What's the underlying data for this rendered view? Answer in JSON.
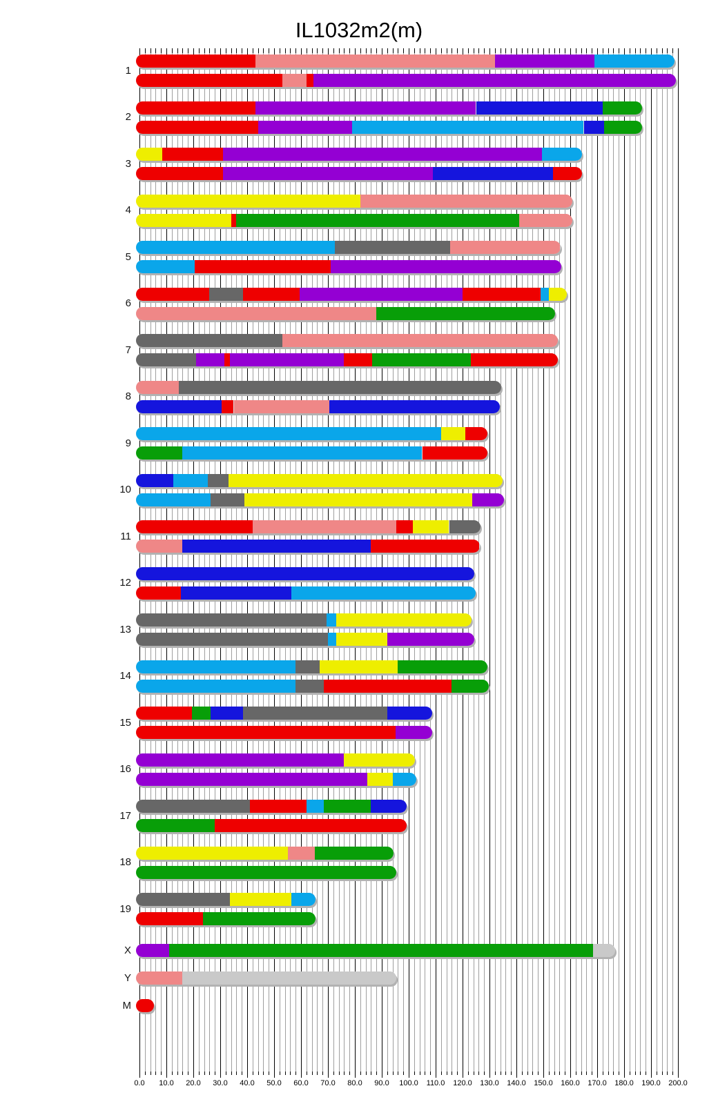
{
  "title": "IL1032m2(m)",
  "palette": {
    "red": "#ee0000",
    "pink": "#ef8787",
    "purple": "#9400d3",
    "blue": "#1515dd",
    "lightblue": "#0aa6ea",
    "green": "#089e08",
    "yellow": "#eeee00",
    "gray": "#676767",
    "lightgray": "#c9c9c9"
  },
  "axis": {
    "min": 0,
    "max": 200,
    "major_step": 10,
    "minor_step": 2,
    "tick_labels": [
      "0.0",
      "10.0",
      "20.0",
      "30.0",
      "40.0",
      "50.0",
      "60.0",
      "70.0",
      "80.0",
      "90.0",
      "100.0",
      "110.0",
      "120.0",
      "130.0",
      "140.0",
      "150.0",
      "160.0",
      "170.0",
      "180.0",
      "190.0",
      "200.0"
    ]
  },
  "chart_data": {
    "type": "bar",
    "subtype": "chromosome-ideogram-stacked-segments",
    "title": "IL1032m2(m)",
    "xlim": [
      0,
      200
    ],
    "grid": "on",
    "chromosomes": [
      {
        "name": "1",
        "bars": [
          [
            [
              0,
              43,
              "red"
            ],
            [
              43,
              132,
              "pink"
            ],
            [
              132,
              169,
              "purple"
            ],
            [
              169,
              197.5,
              "lightblue"
            ]
          ],
          [
            [
              0,
              53,
              "red"
            ],
            [
              53,
              62,
              "pink"
            ],
            [
              62,
              64.5,
              "red"
            ],
            [
              64.5,
              198,
              "purple"
            ]
          ]
        ]
      },
      {
        "name": "2",
        "bars": [
          [
            [
              0,
              43,
              "red"
            ],
            [
              43,
              125,
              "purple"
            ],
            [
              125,
              172,
              "blue"
            ],
            [
              172,
              185.5,
              "green"
            ]
          ],
          [
            [
              0,
              44,
              "red"
            ],
            [
              44,
              79,
              "purple"
            ],
            [
              79,
              165,
              "lightblue"
            ],
            [
              165,
              172.5,
              "blue"
            ],
            [
              172.5,
              185.5,
              "green"
            ]
          ]
        ]
      },
      {
        "name": "3",
        "bars": [
          [
            [
              0,
              8.5,
              "yellow"
            ],
            [
              8.5,
              31,
              "red"
            ],
            [
              31,
              149.5,
              "purple"
            ],
            [
              149.5,
              163,
              "lightblue"
            ]
          ],
          [
            [
              0,
              31,
              "red"
            ],
            [
              31,
              109,
              "purple"
            ],
            [
              109,
              153.5,
              "blue"
            ],
            [
              153.5,
              163,
              "red"
            ]
          ]
        ]
      },
      {
        "name": "4",
        "bars": [
          [
            [
              0,
              82,
              "yellow"
            ],
            [
              82,
              159.5,
              "pink"
            ]
          ],
          [
            [
              0,
              34,
              "yellow"
            ],
            [
              34,
              36,
              "red"
            ],
            [
              36,
              141,
              "green"
            ],
            [
              141,
              159.5,
              "pink"
            ]
          ]
        ]
      },
      {
        "name": "5",
        "bars": [
          [
            [
              0,
              72.5,
              "lightblue"
            ],
            [
              72.5,
              115.5,
              "gray"
            ],
            [
              115.5,
              155,
              "pink"
            ]
          ],
          [
            [
              0,
              20.5,
              "lightblue"
            ],
            [
              20.5,
              71,
              "red"
            ],
            [
              71,
              155.5,
              "purple"
            ]
          ]
        ]
      },
      {
        "name": "6",
        "bars": [
          [
            [
              0,
              26,
              "red"
            ],
            [
              26,
              38.5,
              "gray"
            ],
            [
              38.5,
              59.5,
              "red"
            ],
            [
              59.5,
              120,
              "purple"
            ],
            [
              120,
              149,
              "red"
            ],
            [
              149,
              152,
              "lightblue"
            ],
            [
              152,
              157.5,
              "yellow"
            ]
          ],
          [
            [
              0,
              88,
              "pink"
            ],
            [
              88,
              153,
              "green"
            ]
          ]
        ]
      },
      {
        "name": "7",
        "bars": [
          [
            [
              0,
              53,
              "gray"
            ],
            [
              53,
              154,
              "pink"
            ]
          ],
          [
            [
              0,
              21,
              "gray"
            ],
            [
              21,
              31.5,
              "purple"
            ],
            [
              31.5,
              33.5,
              "red"
            ],
            [
              33.5,
              76,
              "purple"
            ],
            [
              76,
              86.5,
              "red"
            ],
            [
              86.5,
              123,
              "green"
            ],
            [
              123,
              154,
              "red"
            ]
          ]
        ]
      },
      {
        "name": "8",
        "bars": [
          [
            [
              0,
              14.5,
              "pink"
            ],
            [
              14.5,
              133,
              "gray"
            ]
          ],
          [
            [
              0,
              30.5,
              "blue"
            ],
            [
              30.5,
              35,
              "red"
            ],
            [
              35,
              70.5,
              "pink"
            ],
            [
              70.5,
              132.5,
              "blue"
            ]
          ]
        ]
      },
      {
        "name": "9",
        "bars": [
          [
            [
              0,
              112,
              "lightblue"
            ],
            [
              112,
              121,
              "yellow"
            ],
            [
              121,
              128,
              "red"
            ]
          ],
          [
            [
              0,
              16,
              "green"
            ],
            [
              16,
              105,
              "lightblue"
            ],
            [
              105,
              128,
              "red"
            ]
          ]
        ]
      },
      {
        "name": "10",
        "bars": [
          [
            [
              0,
              12.5,
              "blue"
            ],
            [
              12.5,
              25.5,
              "lightblue"
            ],
            [
              25.5,
              33,
              "gray"
            ],
            [
              33,
              133.5,
              "yellow"
            ]
          ],
          [
            [
              0,
              26.5,
              "lightblue"
            ],
            [
              26.5,
              39,
              "gray"
            ],
            [
              39,
              123.5,
              "yellow"
            ],
            [
              123.5,
              134,
              "purple"
            ]
          ]
        ]
      },
      {
        "name": "11",
        "bars": [
          [
            [
              0,
              42,
              "red"
            ],
            [
              42,
              95.5,
              "pink"
            ],
            [
              95.5,
              101.5,
              "red"
            ],
            [
              101.5,
              115,
              "yellow"
            ],
            [
              115,
              125.5,
              "gray"
            ]
          ],
          [
            [
              0,
              16,
              "pink"
            ],
            [
              16,
              86,
              "blue"
            ],
            [
              86,
              125,
              "red"
            ]
          ]
        ]
      },
      {
        "name": "12",
        "bars": [
          [
            [
              0,
              123,
              "blue"
            ]
          ],
          [
            [
              0,
              15.5,
              "red"
            ],
            [
              15.5,
              56.5,
              "blue"
            ],
            [
              56.5,
              123.5,
              "lightblue"
            ]
          ]
        ]
      },
      {
        "name": "13",
        "bars": [
          [
            [
              0,
              69.5,
              "gray"
            ],
            [
              69.5,
              73,
              "lightblue"
            ],
            [
              73,
              122,
              "yellow"
            ]
          ],
          [
            [
              0,
              70,
              "gray"
            ],
            [
              70,
              73,
              "lightblue"
            ],
            [
              73,
              92,
              "yellow"
            ],
            [
              92,
              123,
              "purple"
            ]
          ]
        ]
      },
      {
        "name": "14",
        "bars": [
          [
            [
              0,
              58,
              "lightblue"
            ],
            [
              58,
              67,
              "gray"
            ],
            [
              67,
              96,
              "yellow"
            ],
            [
              96,
              128,
              "green"
            ]
          ],
          [
            [
              0,
              58,
              "lightblue"
            ],
            [
              58,
              68.5,
              "gray"
            ],
            [
              68.5,
              116,
              "red"
            ],
            [
              116,
              128.5,
              "green"
            ]
          ]
        ]
      },
      {
        "name": "15",
        "bars": [
          [
            [
              0,
              19.5,
              "red"
            ],
            [
              19.5,
              26.5,
              "green"
            ],
            [
              26.5,
              38.5,
              "blue"
            ],
            [
              38.5,
              92,
              "gray"
            ],
            [
              92,
              107.5,
              "blue"
            ]
          ],
          [
            [
              0,
              95,
              "red"
            ],
            [
              95,
              107.5,
              "purple"
            ]
          ]
        ]
      },
      {
        "name": "16",
        "bars": [
          [
            [
              0,
              76,
              "purple"
            ],
            [
              76,
              101,
              "yellow"
            ]
          ],
          [
            [
              0,
              84.5,
              "purple"
            ],
            [
              84.5,
              94,
              "yellow"
            ],
            [
              94,
              101.5,
              "lightblue"
            ]
          ]
        ]
      },
      {
        "name": "17",
        "bars": [
          [
            [
              0,
              41,
              "gray"
            ],
            [
              41,
              62,
              "red"
            ],
            [
              62,
              68.5,
              "lightblue"
            ],
            [
              68.5,
              86,
              "green"
            ],
            [
              86,
              98,
              "blue"
            ]
          ],
          [
            [
              0,
              28,
              "green"
            ],
            [
              28,
              98,
              "red"
            ]
          ]
        ]
      },
      {
        "name": "18",
        "bars": [
          [
            [
              0,
              55,
              "yellow"
            ],
            [
              55,
              65,
              "pink"
            ],
            [
              65,
              93,
              "green"
            ]
          ],
          [
            [
              0,
              94,
              "green"
            ]
          ]
        ]
      },
      {
        "name": "19",
        "bars": [
          [
            [
              0,
              33.5,
              "gray"
            ],
            [
              33.5,
              56.5,
              "yellow"
            ],
            [
              56.5,
              64,
              "lightblue"
            ]
          ],
          [
            [
              0,
              23.5,
              "red"
            ],
            [
              23.5,
              64,
              "green"
            ]
          ]
        ]
      },
      {
        "name": "X",
        "bars": [
          [
            [
              0,
              11,
              "purple"
            ],
            [
              11,
              168.5,
              "green"
            ],
            [
              168.5,
              175.5,
              "lightgray"
            ]
          ]
        ]
      },
      {
        "name": "Y",
        "bars": [
          [
            [
              0,
              16,
              "pink"
            ],
            [
              16,
              94,
              "lightgray"
            ]
          ]
        ]
      },
      {
        "name": "M",
        "bars": [
          [
            [
              0,
              4,
              "red"
            ]
          ]
        ]
      }
    ]
  }
}
